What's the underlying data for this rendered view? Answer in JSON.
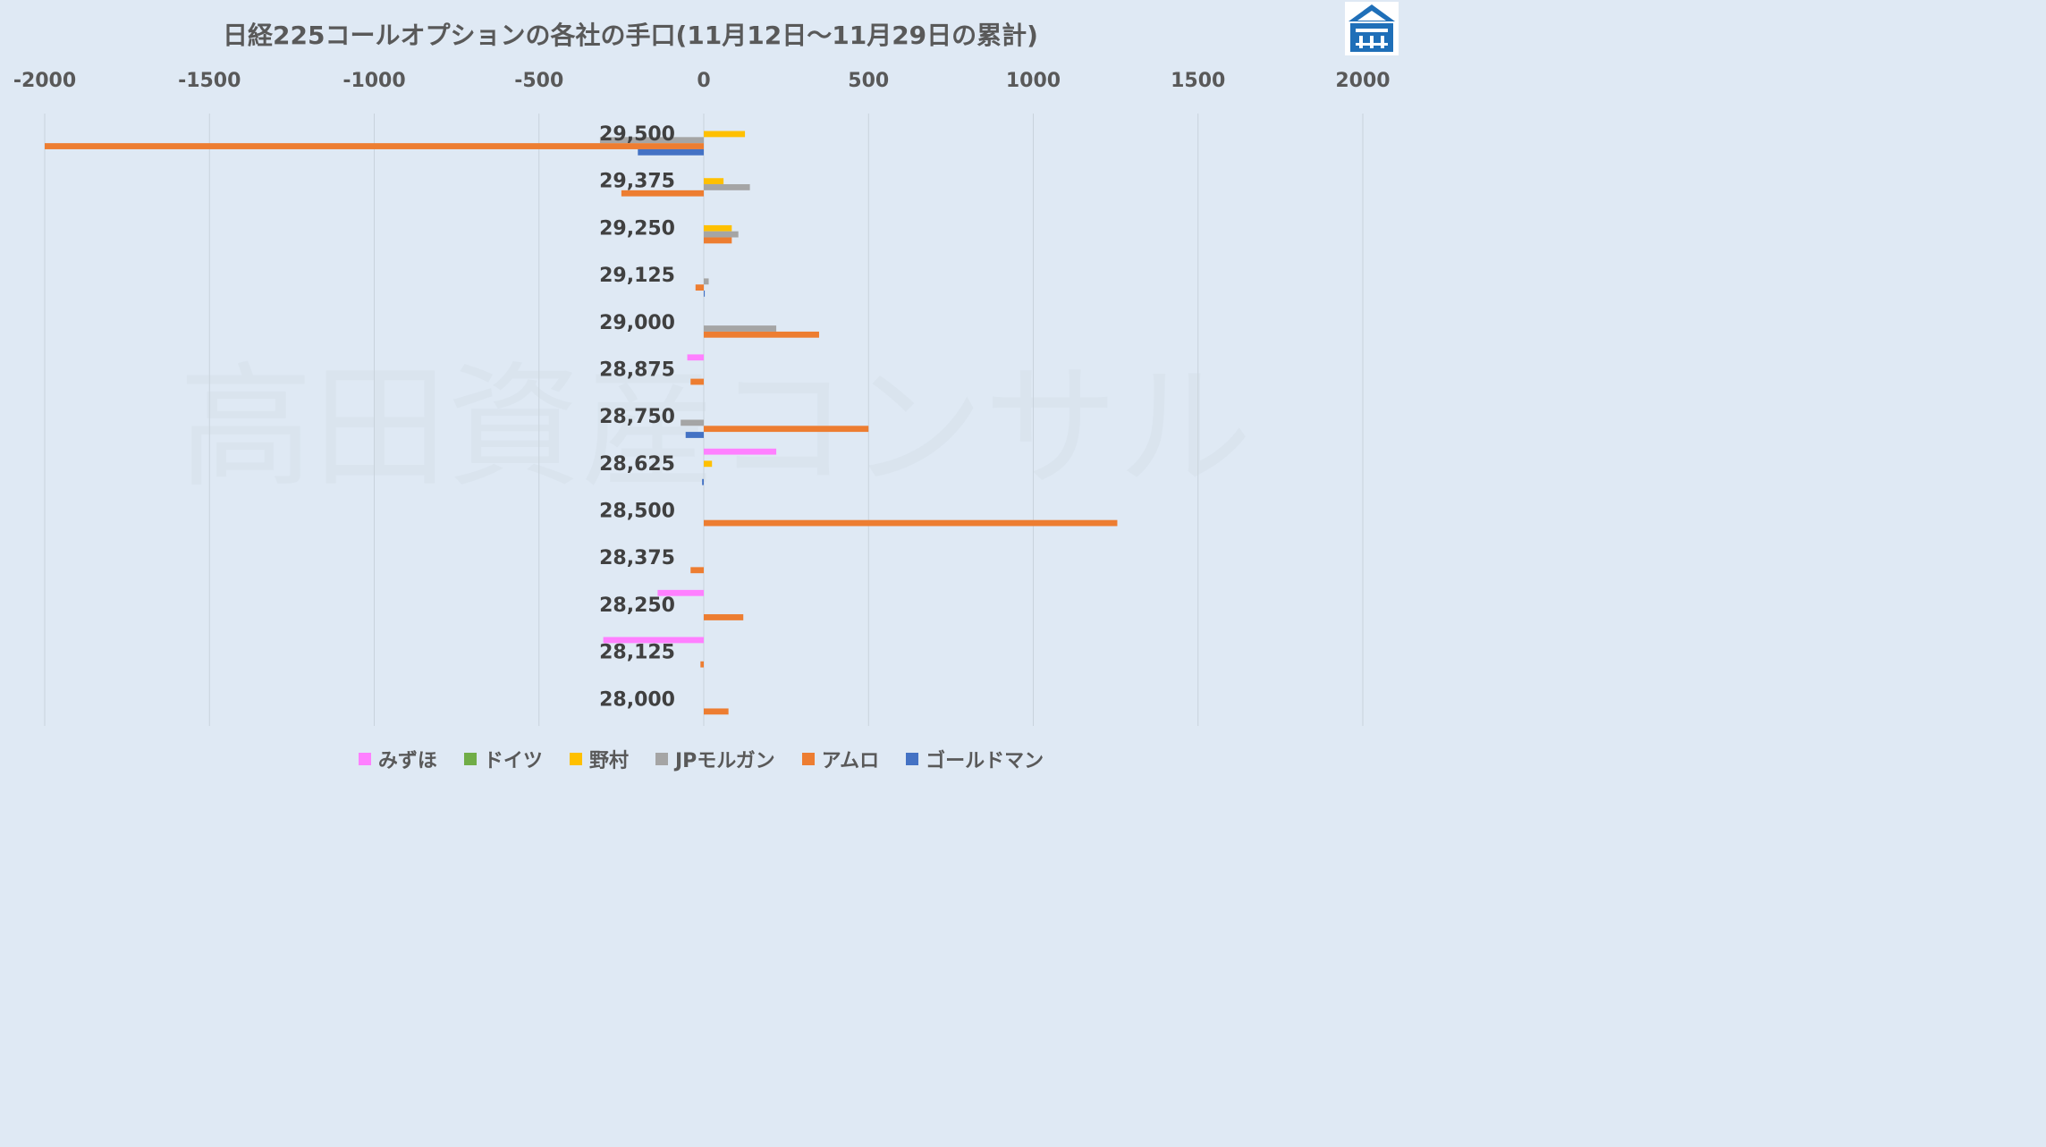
{
  "chart_data": {
    "type": "bar",
    "orientation": "horizontal",
    "title": "日経225コールオプションの各社の手口(11月12日～11月29日の累計)",
    "watermark": "高田資産コンサル",
    "xlim": [
      -2000,
      2000
    ],
    "xticks": [
      "-2000",
      "-1500",
      "-1000",
      "-500",
      "0",
      "500",
      "1000",
      "1500",
      "2000"
    ],
    "categories": [
      "29,500",
      "29,375",
      "29,250",
      "29,125",
      "29,000",
      "28,875",
      "28,750",
      "28,625",
      "28,500",
      "28,375",
      "28,250",
      "28,125",
      "28,000"
    ],
    "series": [
      {
        "name": "みずほ",
        "color": "#ff80ff",
        "values": [
          0,
          0,
          0,
          0,
          0,
          -50,
          0,
          220,
          0,
          0,
          -140,
          -305,
          0
        ]
      },
      {
        "name": "ドイツ",
        "color": "#70ad47",
        "values": [
          0,
          0,
          0,
          0,
          0,
          0,
          0,
          0,
          0,
          0,
          0,
          0,
          0
        ]
      },
      {
        "name": "野村",
        "color": "#ffc000",
        "values": [
          125,
          60,
          85,
          0,
          0,
          0,
          0,
          25,
          0,
          0,
          0,
          0,
          0
        ]
      },
      {
        "name": "JPモルガン",
        "color": "#a5a5a5",
        "values": [
          -315,
          140,
          105,
          15,
          220,
          0,
          -70,
          0,
          0,
          0,
          0,
          0,
          0
        ]
      },
      {
        "name": "アムロ",
        "color": "#ed7d31",
        "values": [
          -2000,
          -250,
          85,
          -25,
          350,
          -40,
          500,
          0,
          1255,
          -40,
          120,
          -10,
          75
        ]
      },
      {
        "name": "ゴールドマン",
        "color": "#4472c4",
        "values": [
          -200,
          0,
          0,
          3,
          0,
          0,
          -55,
          -5,
          0,
          0,
          0,
          0,
          0
        ]
      }
    ],
    "grid": true,
    "legend_position": "bottom"
  },
  "logo": {
    "icon": "house-kanji-logo-icon",
    "color": "#1f6fb8"
  }
}
